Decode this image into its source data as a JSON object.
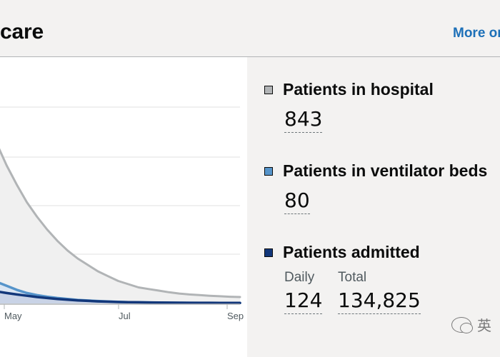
{
  "header": {
    "title": "care",
    "more_link": "More or"
  },
  "metrics": [
    {
      "label": "Patients in hospital",
      "value": "843",
      "color": "#b1b4b6"
    },
    {
      "label": "Patients in ventilator beds",
      "value": "80",
      "color": "#5694ca"
    },
    {
      "label": "Patients admitted",
      "color": "#12377a",
      "daily_label": "Daily",
      "daily_value": "124",
      "total_label": "Total",
      "total_value": "134,825"
    }
  ],
  "chart_data": {
    "type": "line",
    "x_tick_labels": [
      "May",
      "Jul",
      "Sep"
    ],
    "grid": true,
    "series": [
      {
        "color": "#b1b4b6",
        "fill": "#f0f0f0",
        "values": [
          100,
          86,
          74,
          63,
          54,
          46,
          39,
          33,
          28,
          24,
          20,
          17,
          14,
          12,
          10,
          9,
          8,
          7,
          6.2,
          5.6,
          5.2,
          4.8,
          4.5,
          4.2,
          4.0
        ]
      },
      {
        "color": "#5694ca",
        "fill": "#dbe6f3",
        "values": [
          13.5,
          11,
          8.5,
          6.5,
          5.2,
          4.2,
          3.4,
          2.8,
          2.2,
          1.8,
          1.5,
          1.2,
          1.0,
          0.8,
          0.7,
          0.6,
          0.5,
          0.45,
          0.4,
          0.38,
          0.35,
          0.33,
          0.31,
          0.3,
          0.3
        ]
      },
      {
        "color": "#12377a",
        "fill": "#c9d3e6",
        "values": [
          7.5,
          6.5,
          5.6,
          4.8,
          4.0,
          3.4,
          2.8,
          2.3,
          1.9,
          1.6,
          1.3,
          1.1,
          0.9,
          0.8,
          0.7,
          0.62,
          0.55,
          0.5,
          0.45,
          0.42,
          0.4,
          0.38,
          0.36,
          0.35,
          0.34
        ]
      }
    ]
  },
  "watermark": {
    "text": "英",
    "icon": "chat-bubble-icon"
  }
}
